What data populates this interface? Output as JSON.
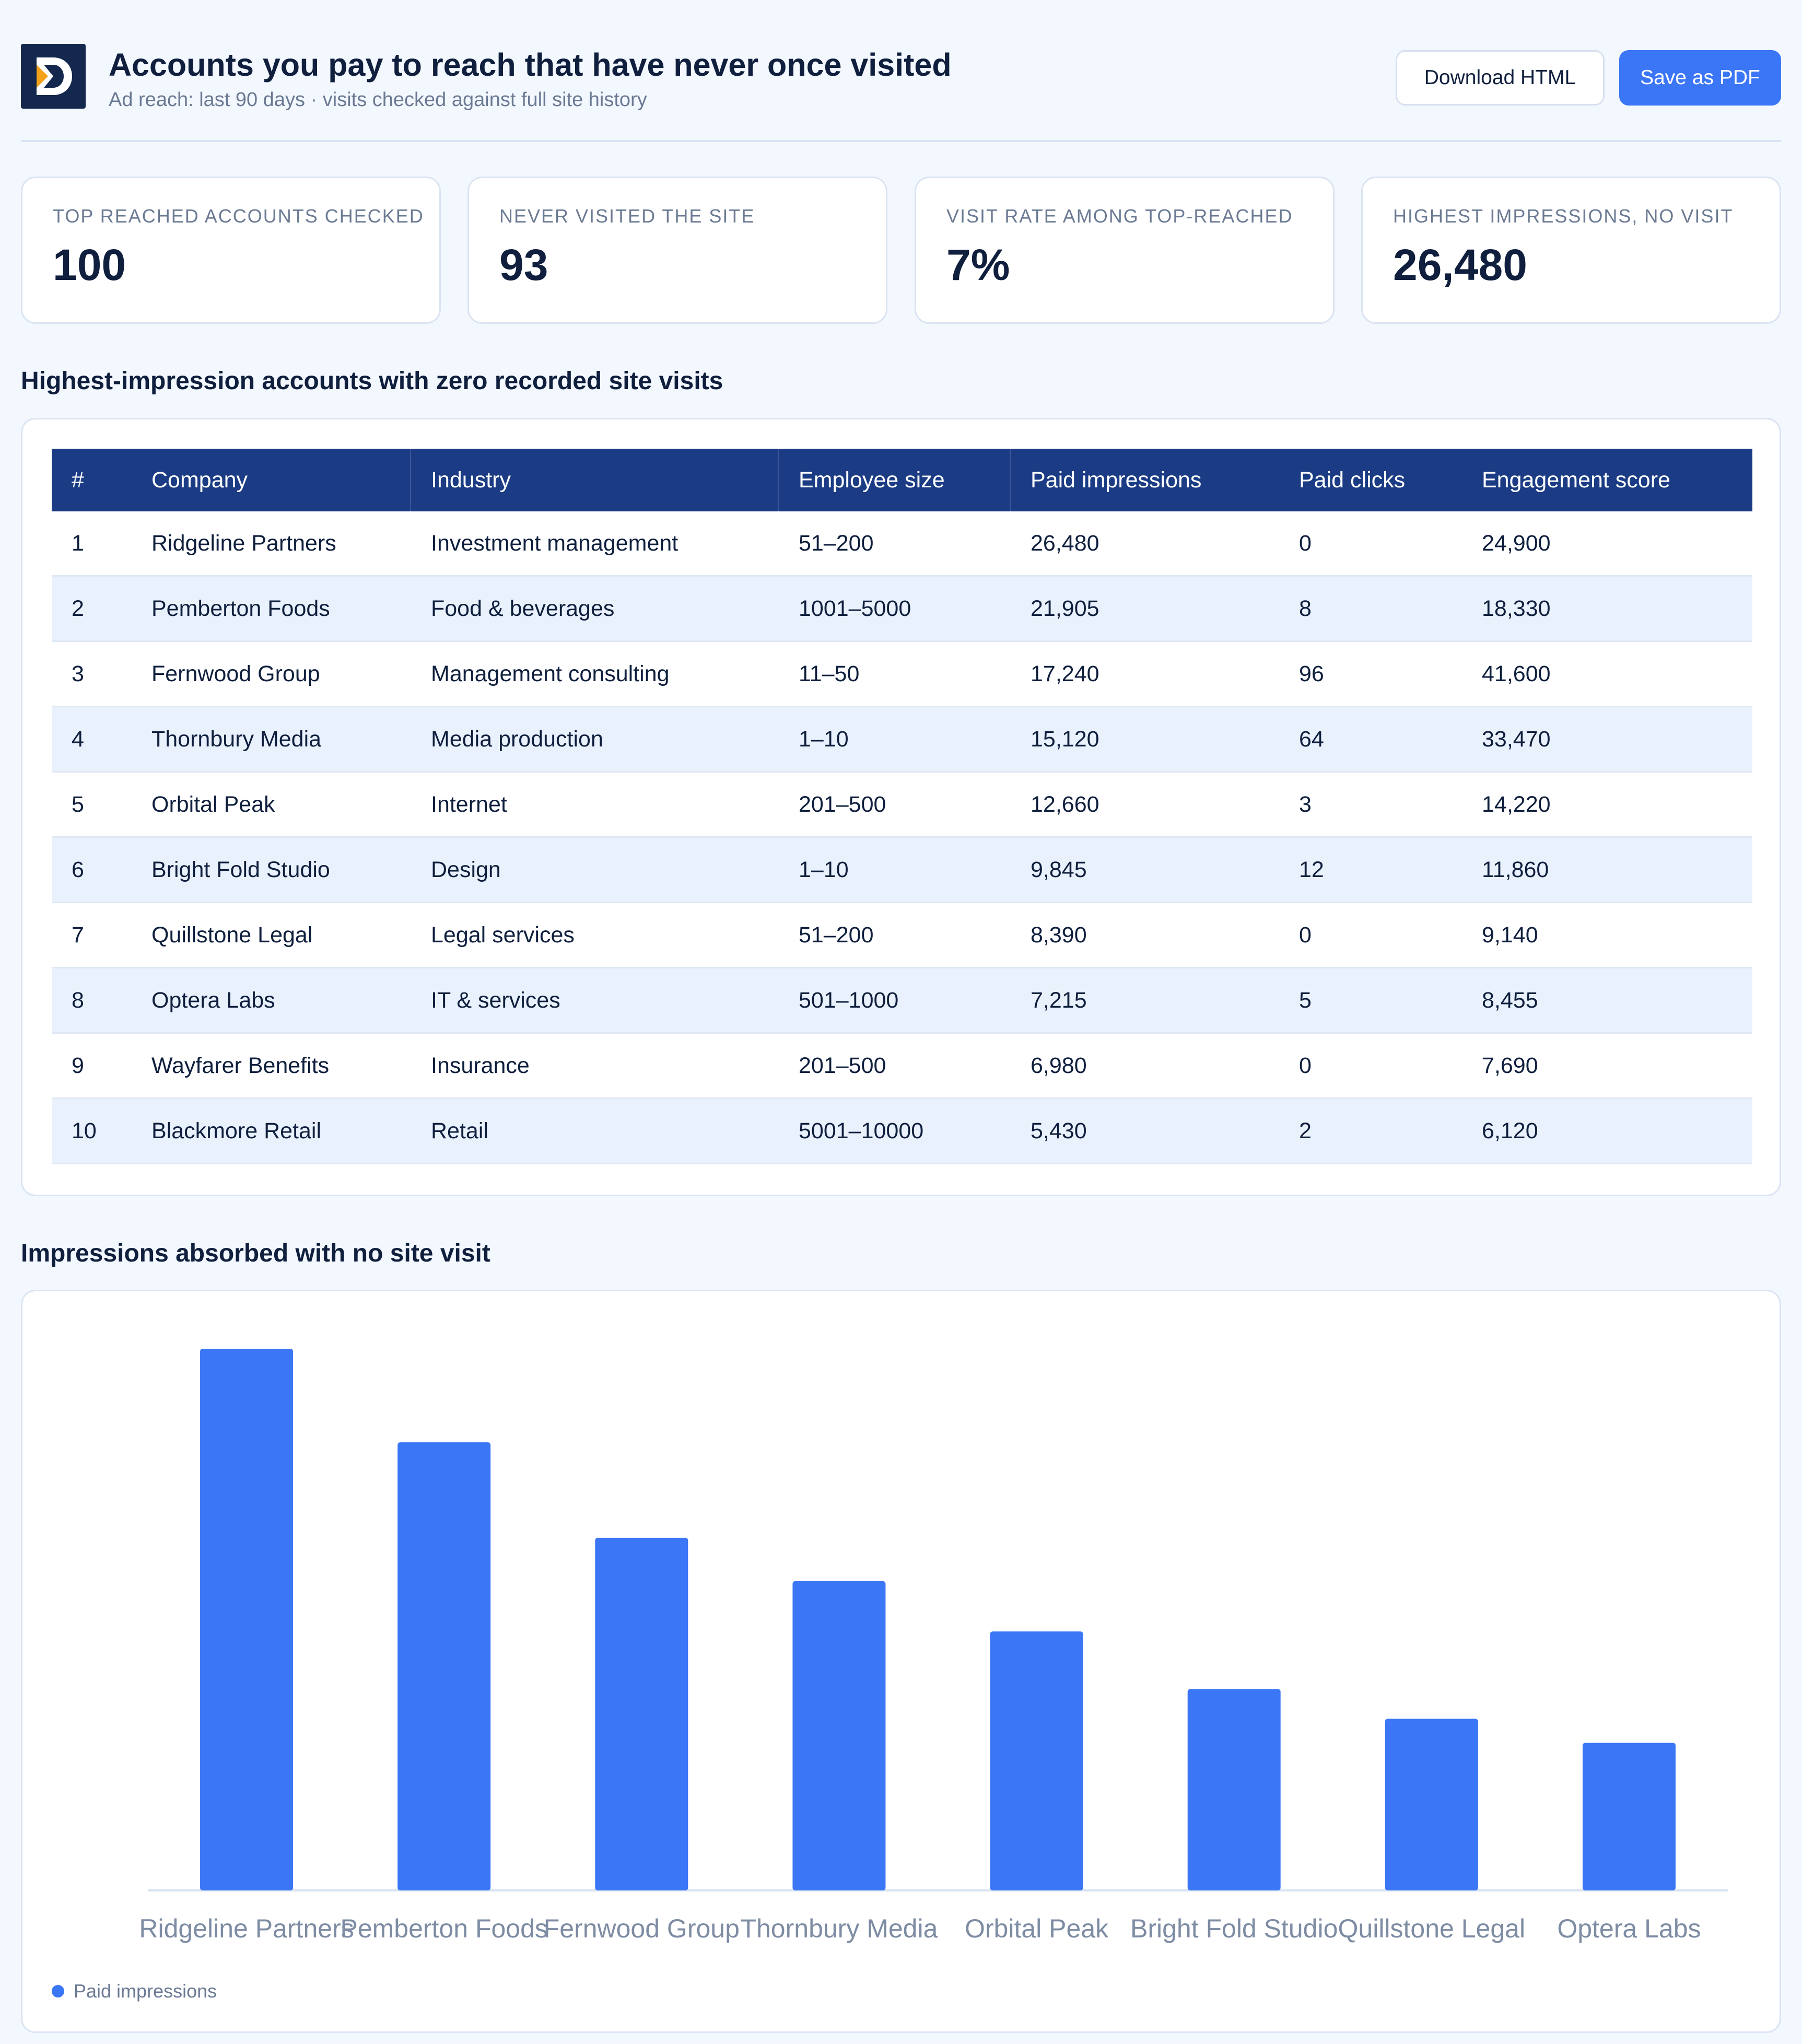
{
  "header": {
    "title": "Accounts you pay to reach that have never once visited",
    "subtitle": "Ad reach: last 90 days · visits checked against full site history",
    "download_label": "Download HTML",
    "save_label": "Save as PDF"
  },
  "kpis": [
    {
      "label": "TOP REACHED ACCOUNTS CHECKED",
      "value": "100"
    },
    {
      "label": "NEVER VISITED THE SITE",
      "value": "93"
    },
    {
      "label": "VISIT RATE AMONG TOP-REACHED",
      "value": "7%"
    },
    {
      "label": "HIGHEST IMPRESSIONS, NO VISIT",
      "value": "26,480"
    }
  ],
  "table_section": {
    "title": "Highest-impression accounts with zero recorded site visits",
    "columns": [
      "#",
      "Company",
      "Industry",
      "Employee size",
      "Paid impressions",
      "Paid clicks",
      "Engagement score"
    ],
    "rows": [
      [
        "1",
        "Ridgeline Partners",
        "Investment management",
        "51–200",
        "26,480",
        "0",
        "24,900"
      ],
      [
        "2",
        "Pemberton Foods",
        "Food & beverages",
        "1001–5000",
        "21,905",
        "8",
        "18,330"
      ],
      [
        "3",
        "Fernwood Group",
        "Management consulting",
        "11–50",
        "17,240",
        "96",
        "41,600"
      ],
      [
        "4",
        "Thornbury Media",
        "Media production",
        "1–10",
        "15,120",
        "64",
        "33,470"
      ],
      [
        "5",
        "Orbital Peak",
        "Internet",
        "201–500",
        "12,660",
        "3",
        "14,220"
      ],
      [
        "6",
        "Bright Fold Studio",
        "Design",
        "1–10",
        "9,845",
        "12",
        "11,860"
      ],
      [
        "7",
        "Quillstone Legal",
        "Legal services",
        "51–200",
        "8,390",
        "0",
        "9,140"
      ],
      [
        "8",
        "Optera Labs",
        "IT & services",
        "501–1000",
        "7,215",
        "5",
        "8,455"
      ],
      [
        "9",
        "Wayfarer Benefits",
        "Insurance",
        "201–500",
        "6,980",
        "0",
        "7,690"
      ],
      [
        "10",
        "Blackmore Retail",
        "Retail",
        "5001–10000",
        "5,430",
        "2",
        "6,120"
      ]
    ]
  },
  "chart_section": {
    "title": "Impressions absorbed with no site visit"
  },
  "colors": {
    "accent": "#3a76f5",
    "table_header": "#1b3c84",
    "logo_bg": "#14284d",
    "logo_orange": "#f5a21b"
  },
  "chart_data": {
    "type": "bar",
    "categories": [
      "Ridgeline Partners",
      "Pemberton Foods",
      "Fernwood Group",
      "Thornbury Media",
      "Orbital Peak",
      "Bright Fold Studio",
      "Quillstone Legal",
      "Optera Labs"
    ],
    "series": [
      {
        "name": "Paid impressions",
        "values": [
          26480,
          21905,
          17240,
          15120,
          12660,
          9845,
          8390,
          7215
        ]
      }
    ],
    "title": "",
    "xlabel": "",
    "ylabel": "",
    "ylim": [
      0,
      26480
    ],
    "grid": false,
    "legend": "bottom-left"
  }
}
